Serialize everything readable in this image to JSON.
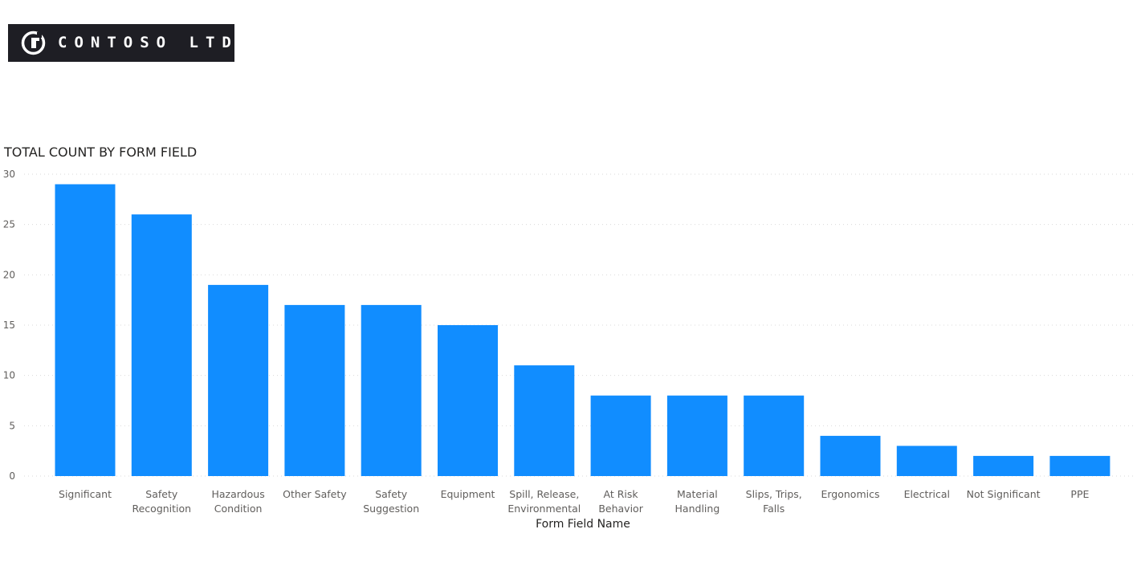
{
  "header": {
    "logo_text": "CONTOSO LTD",
    "logo_icon": "contoso-logo-icon"
  },
  "colors": {
    "bar": "#118dff",
    "logo_bg": "#1e1e24",
    "grid": "#d9d9d9"
  },
  "chart_data": {
    "type": "bar",
    "title": "TOTAL COUNT BY FORM FIELD",
    "xlabel": "Form Field Name",
    "ylabel": "",
    "ylim": [
      0,
      30
    ],
    "yticks": [
      0,
      5,
      10,
      15,
      20,
      25,
      30
    ],
    "grid": true,
    "categories": [
      [
        "Significant"
      ],
      [
        "Safety",
        "Recognition"
      ],
      [
        "Hazardous",
        "Condition"
      ],
      [
        "Other Safety"
      ],
      [
        "Safety",
        "Suggestion"
      ],
      [
        "Equipment"
      ],
      [
        "Spill, Release,",
        "Environmental"
      ],
      [
        "At Risk",
        "Behavior"
      ],
      [
        "Material",
        "Handling"
      ],
      [
        "Slips, Trips,",
        "Falls"
      ],
      [
        "Ergonomics"
      ],
      [
        "Electrical"
      ],
      [
        "Not Significant"
      ],
      [
        "PPE"
      ]
    ],
    "values": [
      29,
      26,
      19,
      17,
      17,
      15,
      11,
      8,
      8,
      8,
      4,
      3,
      2,
      2
    ]
  }
}
